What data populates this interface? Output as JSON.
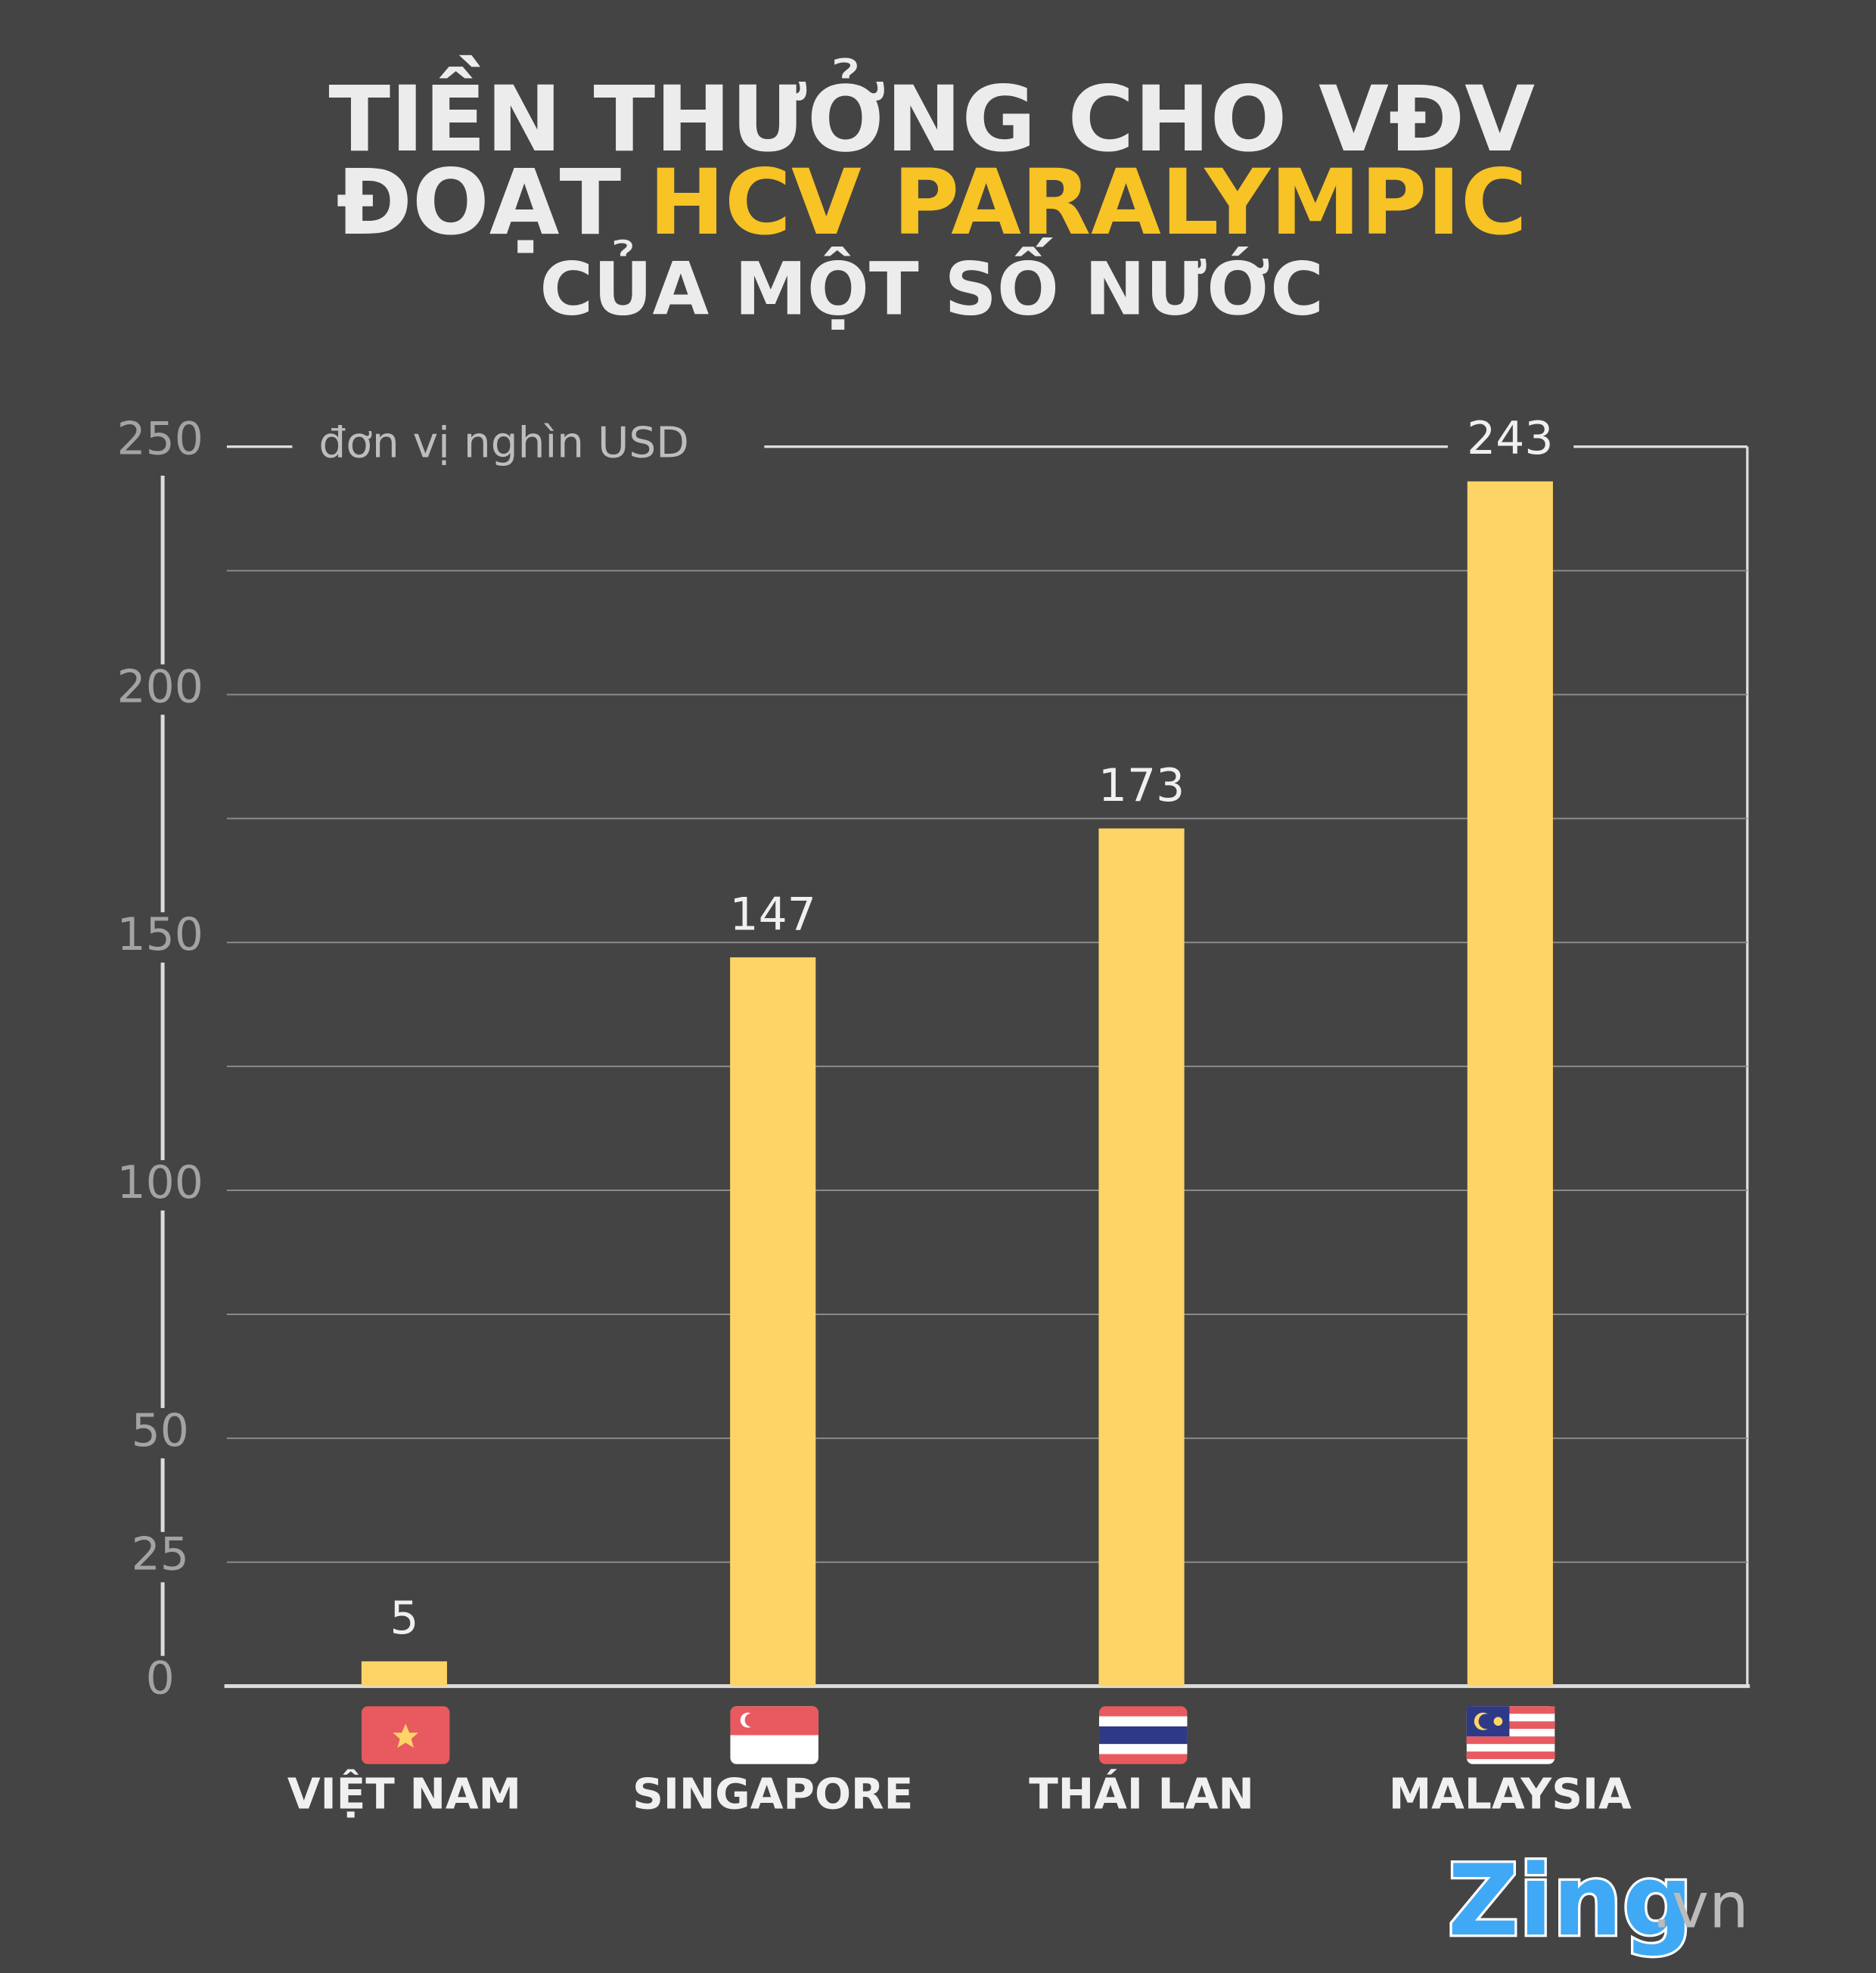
{
  "chart_data": {
    "type": "bar",
    "title": [
      "TIỀN THƯỞNG CHO VĐV",
      "ĐOẠT",
      "HCV PARALYMPIC",
      "CỦA MỘT SỐ NƯỚC"
    ],
    "y_axis_label": "đơn vị nghìn USD",
    "categories": [
      "VIỆT NAM",
      "SINGAPORE",
      "THÁI LAN",
      "MALAYSIA"
    ],
    "values": [
      5,
      147,
      173,
      243
    ],
    "color": "#fed467",
    "ylim": [
      0,
      250
    ],
    "yticks": [
      0,
      25,
      50,
      100,
      150,
      200,
      250
    ],
    "minor_yticks": [
      75,
      125,
      175,
      225
    ],
    "grid": true,
    "logo": [
      "Zing",
      ".vn"
    ]
  }
}
